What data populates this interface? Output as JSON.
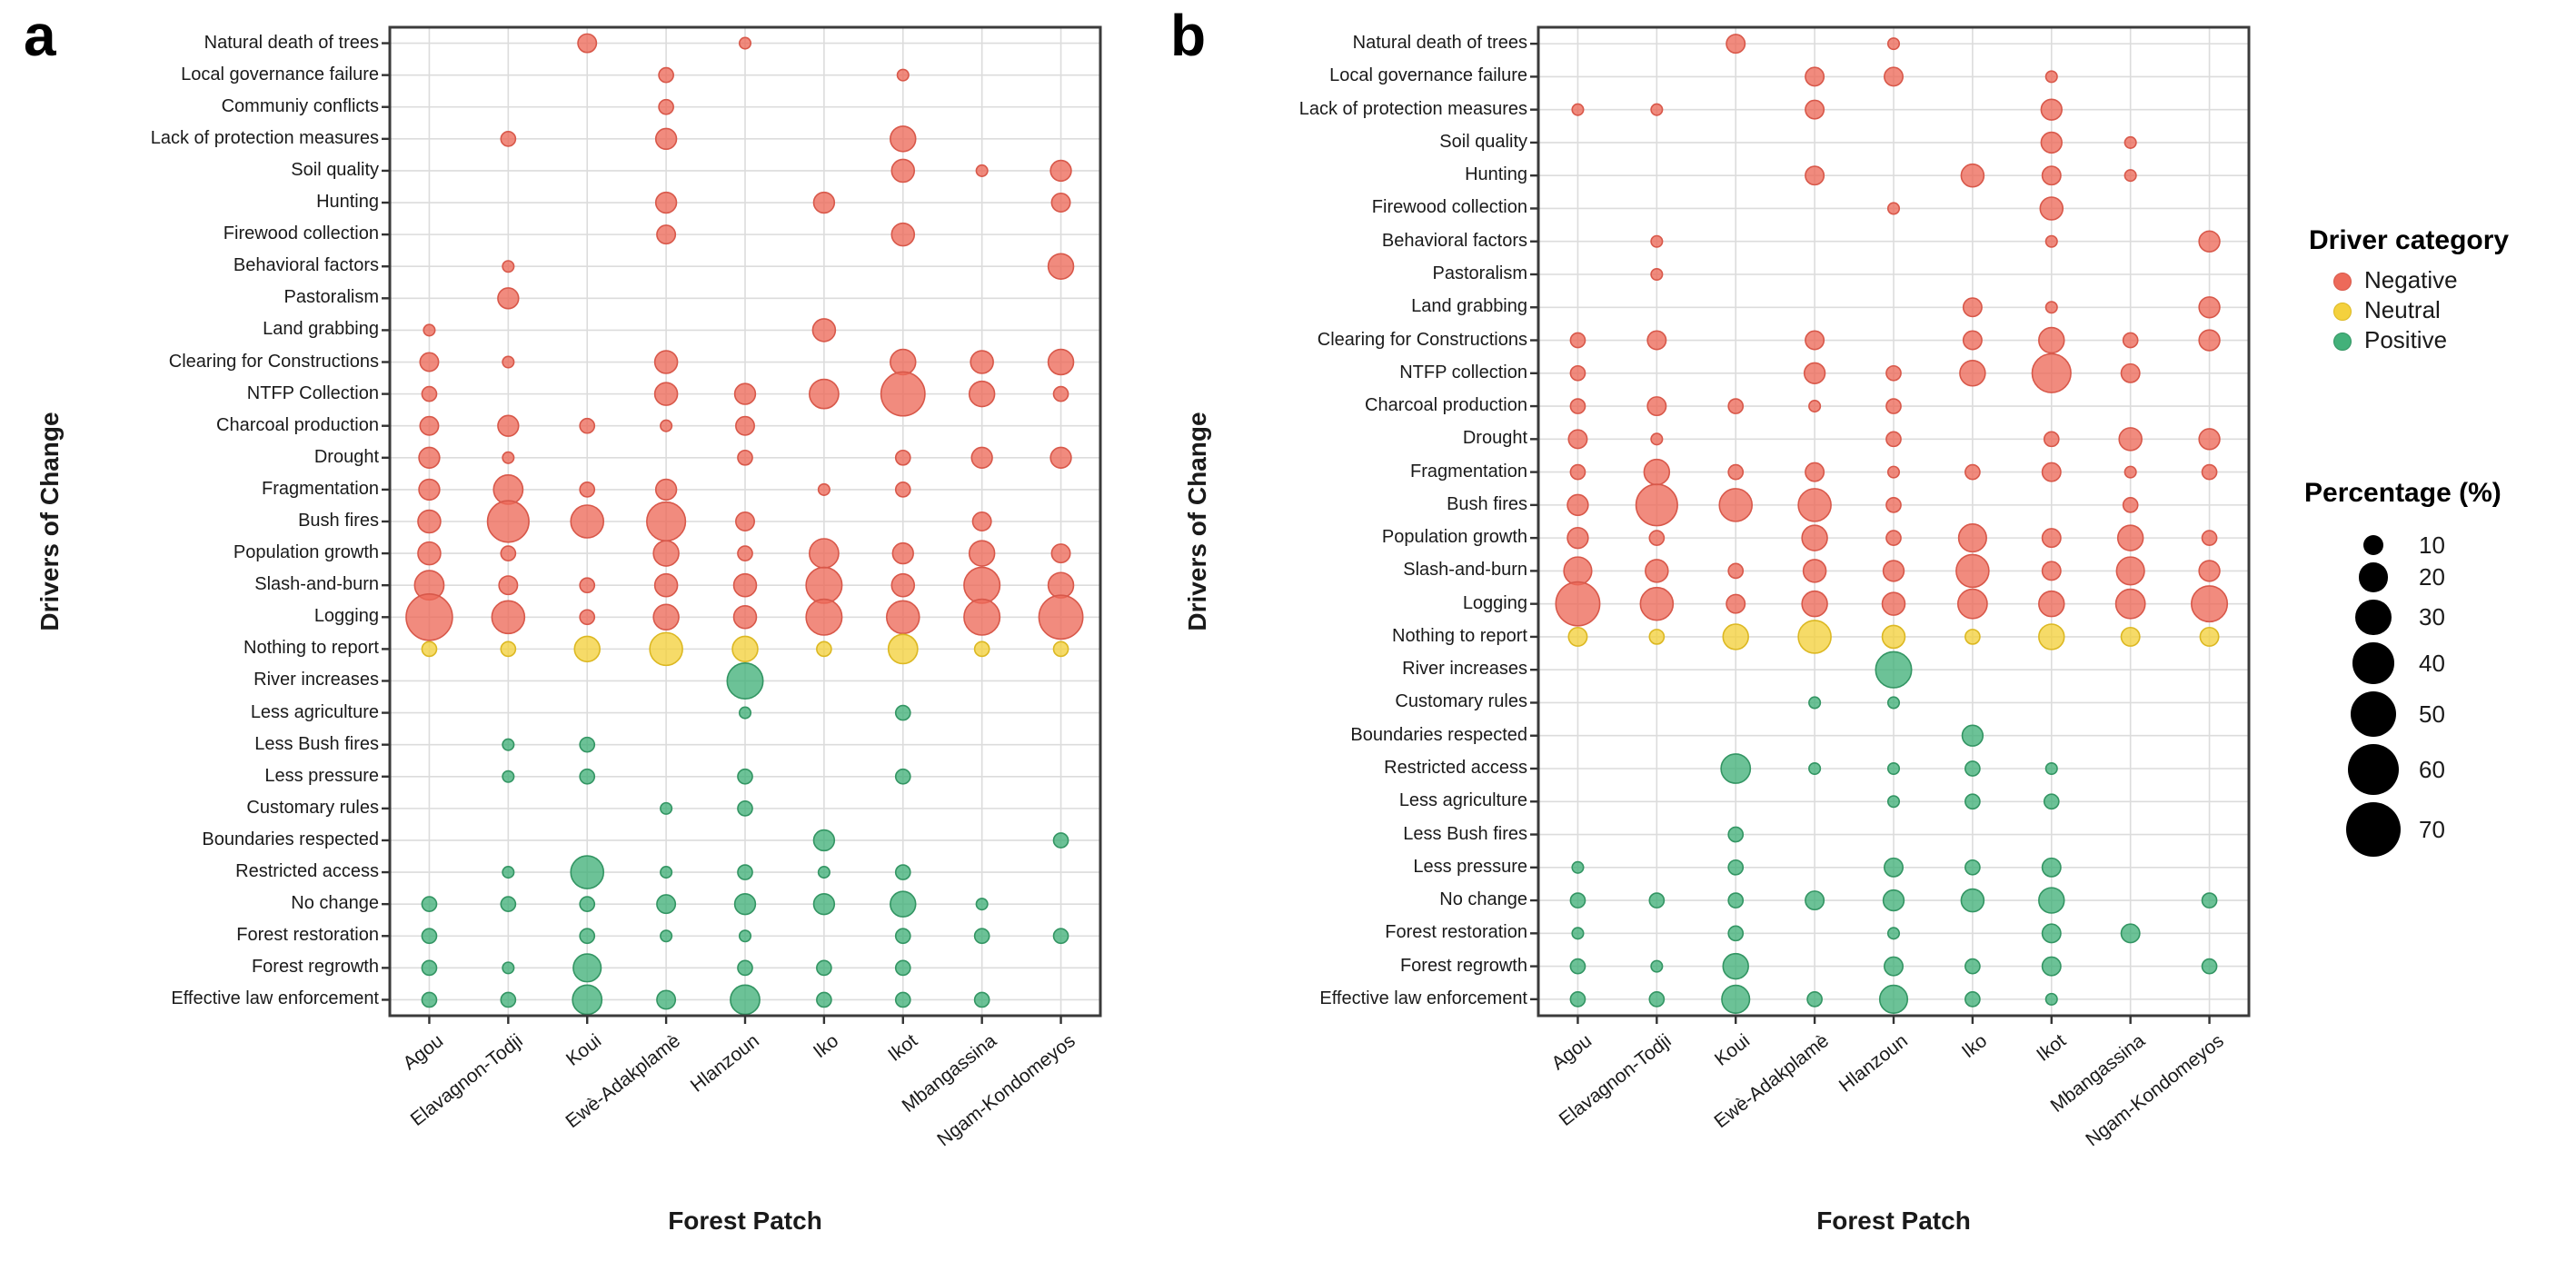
{
  "chart_data": [
    {
      "type": "bubble",
      "panel_label": "a",
      "xlabel": "Forest Patch",
      "ylabel": "Drivers of Change",
      "value_unit": "percent",
      "categories": [
        "Agou",
        "Elavagnon-Todji",
        "Koui",
        "Ewè-Adakplamè",
        "Hlanzoun",
        "Iko",
        "Ikot",
        "Mbangassina",
        "Ngam-Kondomeyos"
      ],
      "rows": [
        {
          "driver": "Natural death of trees",
          "category": "Negative",
          "values": [
            0,
            0,
            8,
            0,
            3,
            0,
            0,
            0,
            0
          ]
        },
        {
          "driver": "Local governance failure",
          "category": "Negative",
          "values": [
            0,
            0,
            0,
            5,
            0,
            0,
            3,
            0,
            0
          ]
        },
        {
          "driver": "Communiy conflicts",
          "category": "Negative",
          "values": [
            0,
            0,
            0,
            5,
            0,
            0,
            0,
            0,
            0
          ]
        },
        {
          "driver": "Lack of protection measures",
          "category": "Negative",
          "values": [
            0,
            5,
            0,
            10,
            0,
            0,
            15,
            0,
            0
          ]
        },
        {
          "driver": "Soil quality",
          "category": "Negative",
          "values": [
            0,
            0,
            0,
            0,
            0,
            0,
            12,
            3,
            10
          ]
        },
        {
          "driver": "Hunting",
          "category": "Negative",
          "values": [
            0,
            0,
            0,
            10,
            0,
            10,
            0,
            0,
            8
          ]
        },
        {
          "driver": "Firewood collection",
          "category": "Negative",
          "values": [
            0,
            0,
            0,
            8,
            0,
            0,
            12,
            0,
            0
          ]
        },
        {
          "driver": "Behavioral factors",
          "category": "Negative",
          "values": [
            0,
            3,
            0,
            0,
            0,
            0,
            0,
            0,
            15
          ]
        },
        {
          "driver": "Pastoralism",
          "category": "Negative",
          "values": [
            0,
            10,
            0,
            0,
            0,
            0,
            0,
            0,
            0
          ]
        },
        {
          "driver": "Land grabbing",
          "category": "Negative",
          "values": [
            3,
            0,
            0,
            0,
            0,
            12,
            0,
            0,
            0
          ]
        },
        {
          "driver": "Clearing for Constructions",
          "category": "Negative",
          "values": [
            8,
            3,
            0,
            12,
            0,
            0,
            15,
            12,
            15
          ]
        },
        {
          "driver": "NTFP Collection",
          "category": "Negative",
          "values": [
            5,
            0,
            0,
            12,
            10,
            20,
            45,
            15,
            5
          ]
        },
        {
          "driver": "Charcoal production",
          "category": "Negative",
          "values": [
            8,
            10,
            5,
            3,
            8,
            0,
            0,
            0,
            0
          ]
        },
        {
          "driver": "Drought",
          "category": "Negative",
          "values": [
            10,
            3,
            0,
            0,
            5,
            0,
            5,
            10,
            10
          ]
        },
        {
          "driver": "Fragmentation",
          "category": "Negative",
          "values": [
            10,
            20,
            5,
            10,
            0,
            3,
            5,
            0,
            0
          ]
        },
        {
          "driver": "Bush fires",
          "category": "Negative",
          "values": [
            12,
            40,
            25,
            35,
            8,
            0,
            0,
            8,
            0
          ]
        },
        {
          "driver": "Population growth",
          "category": "Negative",
          "values": [
            12,
            5,
            0,
            15,
            5,
            20,
            10,
            15,
            8
          ]
        },
        {
          "driver": "Slash-and-burn",
          "category": "Negative",
          "values": [
            20,
            8,
            5,
            12,
            12,
            30,
            12,
            30,
            15
          ]
        },
        {
          "driver": "Logging",
          "category": "Negative",
          "values": [
            50,
            25,
            5,
            15,
            12,
            30,
            25,
            30,
            45
          ]
        },
        {
          "driver": "Nothing to report",
          "category": "Neutral",
          "values": [
            5,
            5,
            15,
            25,
            15,
            5,
            20,
            5,
            5
          ]
        },
        {
          "driver": "River increases",
          "category": "Positive",
          "values": [
            0,
            0,
            0,
            0,
            30,
            0,
            0,
            0,
            0
          ]
        },
        {
          "driver": "Less agriculture",
          "category": "Positive",
          "values": [
            0,
            0,
            0,
            0,
            3,
            0,
            5,
            0,
            0
          ]
        },
        {
          "driver": "Less Bush fires",
          "category": "Positive",
          "values": [
            0,
            3,
            5,
            0,
            0,
            0,
            0,
            0,
            0
          ]
        },
        {
          "driver": "Less pressure",
          "category": "Positive",
          "values": [
            0,
            3,
            5,
            0,
            5,
            0,
            5,
            0,
            0
          ]
        },
        {
          "driver": "Customary rules",
          "category": "Positive",
          "values": [
            0,
            0,
            0,
            3,
            5,
            0,
            0,
            0,
            0
          ]
        },
        {
          "driver": "Boundaries respected",
          "category": "Positive",
          "values": [
            0,
            0,
            0,
            0,
            0,
            10,
            0,
            0,
            5
          ]
        },
        {
          "driver": "Restricted access",
          "category": "Positive",
          "values": [
            0,
            3,
            25,
            3,
            5,
            3,
            5,
            0,
            0
          ]
        },
        {
          "driver": "No change",
          "category": "Positive",
          "values": [
            5,
            5,
            5,
            8,
            10,
            10,
            15,
            3,
            0
          ]
        },
        {
          "driver": "Forest restoration",
          "category": "Positive",
          "values": [
            5,
            0,
            5,
            3,
            3,
            0,
            5,
            5,
            5
          ]
        },
        {
          "driver": "Forest regrowth",
          "category": "Positive",
          "values": [
            5,
            3,
            18,
            0,
            5,
            5,
            5,
            0,
            0
          ]
        },
        {
          "driver": "Effective law enforcement",
          "category": "Positive",
          "values": [
            5,
            5,
            20,
            8,
            20,
            5,
            5,
            5,
            0
          ]
        }
      ]
    },
    {
      "type": "bubble",
      "panel_label": "b",
      "xlabel": "Forest Patch",
      "ylabel": "Drivers of Change",
      "value_unit": "percent",
      "categories": [
        "Agou",
        "Elavagnon-Todji",
        "Koui",
        "Ewè-Adakplamè",
        "Hlanzoun",
        "Iko",
        "Ikot",
        "Mbangassina",
        "Ngam-Kondomeyos"
      ],
      "rows": [
        {
          "driver": "Natural death of trees",
          "category": "Negative",
          "values": [
            0,
            0,
            8,
            0,
            3,
            0,
            0,
            0,
            0
          ]
        },
        {
          "driver": "Local governance failure",
          "category": "Negative",
          "values": [
            0,
            0,
            0,
            8,
            8,
            0,
            3,
            0,
            0
          ]
        },
        {
          "driver": "Lack of protection measures",
          "category": "Negative",
          "values": [
            3,
            3,
            0,
            8,
            0,
            0,
            10,
            0,
            0
          ]
        },
        {
          "driver": "Soil quality",
          "category": "Negative",
          "values": [
            0,
            0,
            0,
            0,
            0,
            0,
            10,
            3,
            0
          ]
        },
        {
          "driver": "Hunting",
          "category": "Negative",
          "values": [
            0,
            0,
            0,
            8,
            0,
            12,
            8,
            3,
            0
          ]
        },
        {
          "driver": "Firewood collection",
          "category": "Negative",
          "values": [
            0,
            0,
            0,
            0,
            3,
            0,
            12,
            0,
            0
          ]
        },
        {
          "driver": "Behavioral factors",
          "category": "Negative",
          "values": [
            0,
            3,
            0,
            0,
            0,
            0,
            3,
            0,
            10
          ]
        },
        {
          "driver": "Pastoralism",
          "category": "Negative",
          "values": [
            0,
            3,
            0,
            0,
            0,
            0,
            0,
            0,
            0
          ]
        },
        {
          "driver": "Land grabbing",
          "category": "Negative",
          "values": [
            0,
            0,
            0,
            0,
            0,
            8,
            3,
            0,
            10
          ]
        },
        {
          "driver": "Clearing for Constructions",
          "category": "Negative",
          "values": [
            5,
            8,
            0,
            8,
            0,
            8,
            15,
            5,
            10
          ]
        },
        {
          "driver": "NTFP collection",
          "category": "Negative",
          "values": [
            5,
            0,
            0,
            10,
            5,
            15,
            35,
            8,
            0
          ]
        },
        {
          "driver": "Charcoal production",
          "category": "Negative",
          "values": [
            5,
            8,
            5,
            3,
            5,
            0,
            0,
            0,
            0
          ]
        },
        {
          "driver": "Drought",
          "category": "Negative",
          "values": [
            8,
            3,
            0,
            0,
            5,
            0,
            5,
            12,
            10
          ]
        },
        {
          "driver": "Fragmentation",
          "category": "Negative",
          "values": [
            5,
            15,
            5,
            8,
            3,
            5,
            8,
            3,
            5
          ]
        },
        {
          "driver": "Bush fires",
          "category": "Negative",
          "values": [
            10,
            40,
            25,
            25,
            5,
            0,
            0,
            5,
            0
          ]
        },
        {
          "driver": "Population growth",
          "category": "Negative",
          "values": [
            10,
            5,
            0,
            15,
            5,
            18,
            8,
            15,
            5
          ]
        },
        {
          "driver": "Slash-and-burn",
          "category": "Negative",
          "values": [
            18,
            12,
            5,
            12,
            10,
            25,
            8,
            18,
            10
          ]
        },
        {
          "driver": "Logging",
          "category": "Negative",
          "values": [
            45,
            25,
            8,
            15,
            12,
            20,
            15,
            20,
            30
          ]
        },
        {
          "driver": "Nothing to report",
          "category": "Neutral",
          "values": [
            8,
            5,
            15,
            25,
            12,
            5,
            15,
            8,
            8
          ]
        },
        {
          "driver": "River increases",
          "category": "Positive",
          "values": [
            0,
            0,
            0,
            0,
            30,
            0,
            0,
            0,
            0
          ]
        },
        {
          "driver": "Customary rules",
          "category": "Positive",
          "values": [
            0,
            0,
            0,
            3,
            3,
            0,
            0,
            0,
            0
          ]
        },
        {
          "driver": "Boundaries respected",
          "category": "Positive",
          "values": [
            0,
            0,
            0,
            0,
            0,
            10,
            0,
            0,
            0
          ]
        },
        {
          "driver": "Restricted access",
          "category": "Positive",
          "values": [
            0,
            0,
            20,
            3,
            3,
            5,
            3,
            0,
            0
          ]
        },
        {
          "driver": "Less agriculture",
          "category": "Positive",
          "values": [
            0,
            0,
            0,
            0,
            3,
            5,
            5,
            0,
            0
          ]
        },
        {
          "driver": "Less Bush fires",
          "category": "Positive",
          "values": [
            0,
            0,
            5,
            0,
            0,
            0,
            0,
            0,
            0
          ]
        },
        {
          "driver": "Less pressure",
          "category": "Positive",
          "values": [
            3,
            0,
            5,
            0,
            8,
            5,
            8,
            0,
            0
          ]
        },
        {
          "driver": "No change",
          "category": "Positive",
          "values": [
            5,
            5,
            5,
            8,
            10,
            12,
            15,
            0,
            5
          ]
        },
        {
          "driver": "Forest restoration",
          "category": "Positive",
          "values": [
            3,
            0,
            5,
            0,
            3,
            0,
            8,
            8,
            0
          ]
        },
        {
          "driver": "Forest regrowth",
          "category": "Positive",
          "values": [
            5,
            3,
            15,
            0,
            8,
            5,
            8,
            0,
            5
          ]
        },
        {
          "driver": "Effective law enforcement",
          "category": "Positive",
          "values": [
            5,
            5,
            18,
            5,
            18,
            5,
            3,
            0,
            0
          ]
        }
      ]
    }
  ],
  "legend": {
    "category_title": "Driver category",
    "categories": [
      {
        "label": "Negative",
        "color": "#ED6A5A",
        "stroke": "#D8584A"
      },
      {
        "label": "Neutral",
        "color": "#F4D13E",
        "stroke": "#DCB822"
      },
      {
        "label": "Positive",
        "color": "#43B17A",
        "stroke": "#339563"
      }
    ],
    "size_title": "Percentage (%)",
    "size_values": [
      10,
      20,
      30,
      40,
      50,
      60,
      70
    ],
    "size_color": "#000000"
  },
  "style": {
    "grid_color": "#dcdcdc",
    "frame_color": "#3b3b3b",
    "tick_color": "#333333",
    "fill_opacity": 0.78
  }
}
